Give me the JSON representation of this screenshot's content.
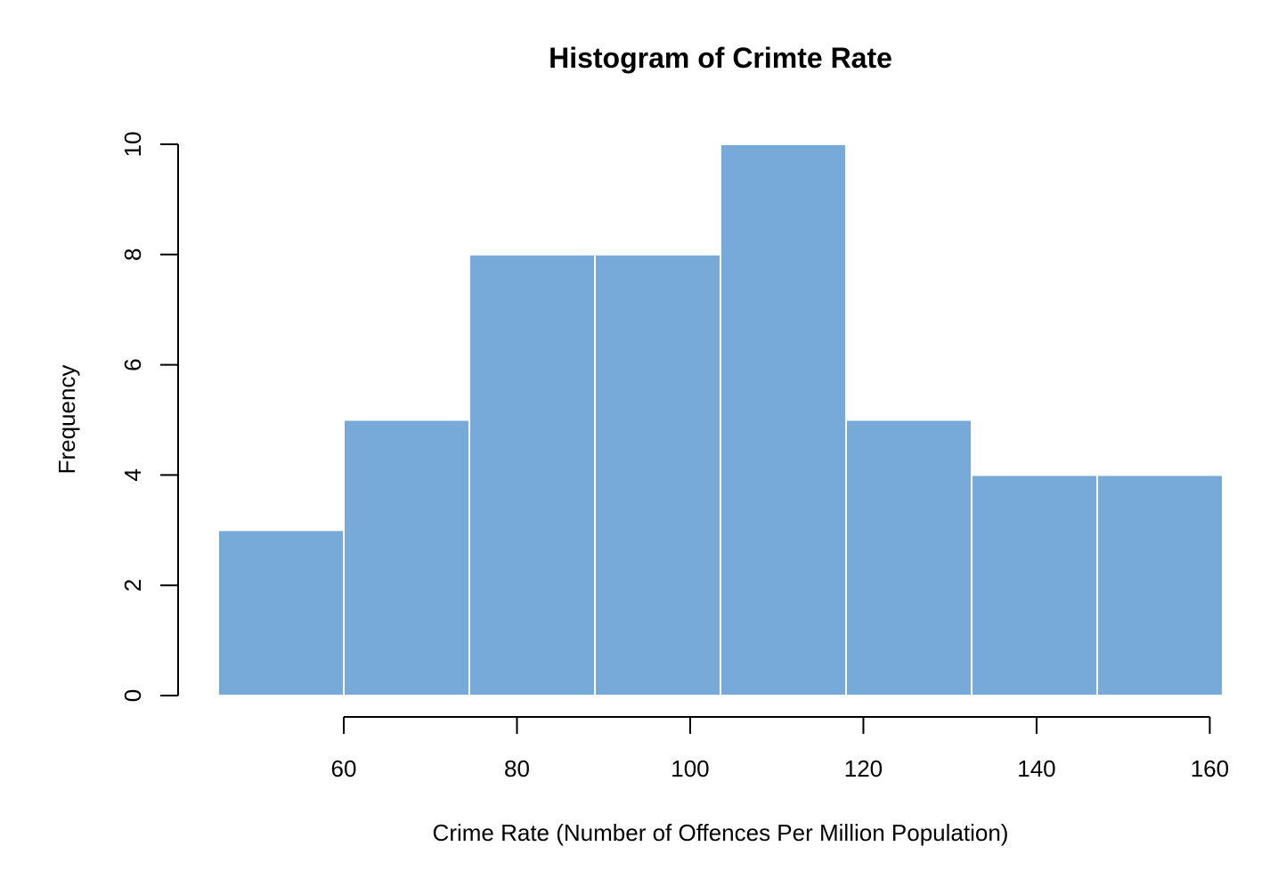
{
  "chart_data": {
    "type": "bar",
    "title": "Histogram of Crimte Rate",
    "xlabel": "Crime Rate (Number of Offences Per Million Population)",
    "ylabel": "Frequency",
    "bin_edges": [
      45.5,
      60,
      74.5,
      89,
      103.5,
      118,
      132.5,
      147,
      161.5
    ],
    "values": [
      3,
      5,
      8,
      8,
      10,
      5,
      4,
      4
    ],
    "xlim": [
      45.5,
      161.5
    ],
    "ylim": [
      0,
      10
    ],
    "x_ticks": [
      60,
      80,
      100,
      120,
      140,
      160
    ],
    "y_ticks": [
      0,
      2,
      4,
      6,
      8,
      10
    ],
    "bar_color": "#77aad9",
    "bar_border_color": "#ffffff",
    "grid": false
  }
}
